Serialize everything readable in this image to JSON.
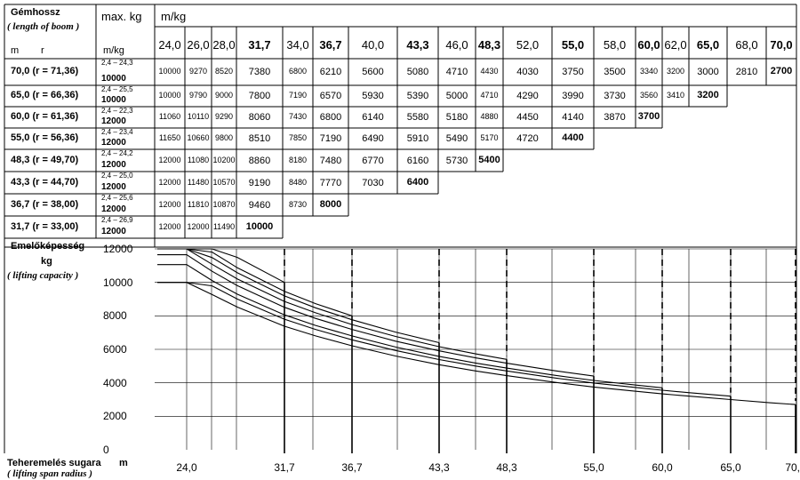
{
  "header": {
    "boom_length_hu": "Gémhossz",
    "boom_length_en": "( length of boom )",
    "unit_m": "m",
    "unit_r": "r",
    "max_kg": "max. kg",
    "m_kg": "m/kg",
    "m_kg_top": "m/kg"
  },
  "chart_labels": {
    "ylabel_hu": "Emelőképesség",
    "ylabel_unit": "kg",
    "ylabel_en": "( lifting capacity )",
    "xlabel_hu": "Teheremelés sugara",
    "xlabel_unit": "m",
    "xlabel_en": "( lifting span radius )"
  },
  "chart_data": {
    "type": "line",
    "ylabel": "Emelőképesség kg",
    "xlabel": "Teheremelés sugara m",
    "ylim": [
      0,
      12000
    ],
    "xlim": [
      24.0,
      70.0
    ],
    "y_ticks": [
      "0",
      "2000",
      "4000",
      "6000",
      "8000",
      "10000",
      "12000"
    ],
    "x_ticks": [
      "24,0",
      "31,7",
      "36,7",
      "43,3",
      "48,3",
      "55,0",
      "60,0",
      "65,0",
      "70,0"
    ],
    "x_tick_values": [
      24.0,
      31.7,
      36.7,
      43.3,
      48.3,
      55.0,
      60.0,
      65.0,
      70.0
    ],
    "columns": [
      "24,0",
      "26,0",
      "28,0",
      "31,7",
      "34,0",
      "36,7",
      "40,0",
      "43,3",
      "46,0",
      "48,3",
      "52,0",
      "55,0",
      "58,0",
      "60,0",
      "62,0",
      "65,0",
      "68,0",
      "70,0"
    ],
    "column_values": [
      24.0,
      26.0,
      28.0,
      31.7,
      34.0,
      36.7,
      40.0,
      43.3,
      46.0,
      48.3,
      52.0,
      55.0,
      58.0,
      60.0,
      62.0,
      65.0,
      68.0,
      70.0
    ],
    "bold_columns": [
      "31,7",
      "36,7",
      "43,3",
      "48,3",
      "55,0",
      "60,0",
      "65,0",
      "70,0"
    ],
    "series": [
      {
        "name": "70,0 (r = 71,36)",
        "boom": "70,0",
        "r": "(r = 71,36)",
        "range": "2,4 – 24,3",
        "max": "10000",
        "values": [
          10000,
          9270,
          8520,
          7380,
          6800,
          6210,
          5600,
          5080,
          4710,
          4430,
          4030,
          3750,
          3500,
          3340,
          3200,
          3000,
          2810,
          2700
        ]
      },
      {
        "name": "65,0 (r = 66,36)",
        "boom": "65,0",
        "r": "(r = 66,36)",
        "range": "2,4 – 25,5",
        "max": "10000",
        "values": [
          10000,
          9790,
          9000,
          7800,
          7190,
          6570,
          5930,
          5390,
          5000,
          4710,
          4290,
          3990,
          3730,
          3560,
          3410,
          3200
        ]
      },
      {
        "name": "60,0 (r = 61,36)",
        "boom": "60,0",
        "r": "(r = 61,36)",
        "range": "2,4 – 22,3",
        "max": "12000",
        "values": [
          11060,
          10110,
          9290,
          8060,
          7430,
          6800,
          6140,
          5580,
          5180,
          4880,
          4450,
          4140,
          3870,
          3700
        ]
      },
      {
        "name": "55,0 (r = 56,36)",
        "boom": "55,0",
        "r": "(r = 56,36)",
        "range": "2,4 – 23,4",
        "max": "12000",
        "values": [
          11650,
          10660,
          9800,
          8510,
          7850,
          7190,
          6490,
          5910,
          5490,
          5170,
          4720,
          4400
        ]
      },
      {
        "name": "48,3 (r = 49,70)",
        "boom": "48,3",
        "r": "(r = 49,70)",
        "range": "2,4 – 24,2",
        "max": "12000",
        "values": [
          12000,
          11080,
          10200,
          8860,
          8180,
          7480,
          6770,
          6160,
          5730,
          5400
        ]
      },
      {
        "name": "43,3 (r = 44,70)",
        "boom": "43,3",
        "r": "(r = 44,70)",
        "range": "2,4 – 25,0",
        "max": "12000",
        "values": [
          12000,
          11480,
          10570,
          9190,
          8480,
          7770,
          7030,
          6400
        ]
      },
      {
        "name": "36,7 (r = 38,00)",
        "boom": "36,7",
        "r": "(r = 38,00)",
        "range": "2,4 – 25,6",
        "max": "12000",
        "values": [
          12000,
          11810,
          10870,
          9460,
          8730,
          8000
        ]
      },
      {
        "name": "31,7 (r = 33,00)",
        "boom": "31,7",
        "r": "(r = 33,00)",
        "range": "2,4 – 26,9",
        "max": "12000",
        "values": [
          12000,
          12000,
          11490,
          10000
        ]
      }
    ],
    "grid": true
  }
}
